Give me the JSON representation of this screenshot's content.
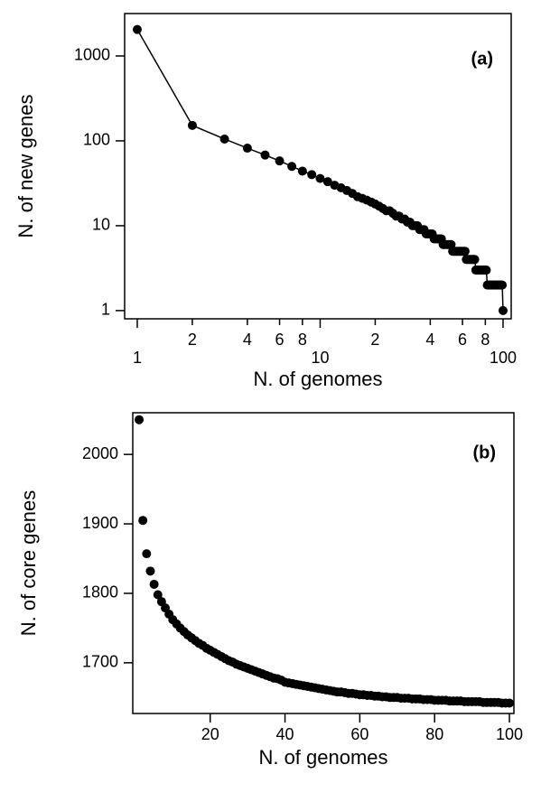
{
  "chart_data": [
    {
      "type": "line",
      "annotation": "(a)",
      "xlabel": "N. of genomes",
      "ylabel": "N. of new genes",
      "xscale": "log",
      "yscale": "log",
      "color": "#000000",
      "markers": true,
      "x": [
        1,
        2,
        3,
        4,
        5,
        6,
        7,
        8,
        9,
        10,
        11,
        12,
        13,
        14,
        15,
        16,
        17,
        18,
        19,
        20,
        21,
        22,
        23,
        24,
        25,
        26,
        27,
        28,
        29,
        30,
        31,
        32,
        33,
        34,
        35,
        36,
        37,
        38,
        39,
        40,
        41,
        42,
        43,
        44,
        45,
        46,
        47,
        48,
        49,
        50,
        51,
        52,
        53,
        54,
        55,
        56,
        57,
        58,
        59,
        60,
        61,
        62,
        63,
        64,
        65,
        66,
        67,
        68,
        69,
        70,
        71,
        72,
        73,
        74,
        75,
        76,
        77,
        78,
        79,
        80,
        81,
        82,
        83,
        84,
        85,
        86,
        87,
        88,
        89,
        90,
        91,
        92,
        93,
        94,
        95,
        96,
        97,
        98,
        99,
        100
      ],
      "values": [
        2050,
        152,
        105,
        82,
        68,
        58,
        50,
        44,
        40,
        36,
        33,
        30,
        28,
        26,
        24,
        22,
        21,
        20,
        19,
        18,
        17,
        16,
        15,
        15,
        14,
        13,
        13,
        12,
        12,
        11,
        11,
        10,
        10,
        10,
        9,
        9,
        9,
        8,
        8,
        8,
        8,
        7,
        7,
        7,
        7,
        7,
        6,
        6,
        6,
        6,
        6,
        6,
        5,
        5,
        5,
        5,
        5,
        5,
        5,
        5,
        5,
        5,
        4,
        4,
        4,
        4,
        4,
        4,
        4,
        4,
        3,
        3,
        3,
        3,
        3,
        3,
        3,
        3,
        3,
        3,
        3,
        2,
        2,
        2,
        2,
        2,
        2,
        2,
        2,
        2,
        2,
        2,
        2,
        2,
        2,
        2,
        2,
        2,
        2,
        1
      ],
      "xlim": [
        0.853,
        110.8
      ],
      "ylim": [
        0.8,
        3160
      ],
      "xticks": [
        1,
        {
          "value": 2,
          "label": "2"
        },
        {
          "value": 4,
          "label": "4"
        },
        {
          "value": 6,
          "label": "6"
        },
        {
          "value": 8,
          "label": "8"
        },
        10,
        {
          "value": 20,
          "label": "2"
        },
        {
          "value": 40,
          "label": "4"
        },
        {
          "value": 60,
          "label": "6"
        },
        {
          "value": 80,
          "label": "8"
        },
        100
      ],
      "yticks": [
        1,
        10,
        100,
        1000
      ]
    },
    {
      "type": "scatter",
      "annotation": "(b)",
      "xlabel": "N. of genomes",
      "ylabel": "N. of core genes",
      "xscale": "linear",
      "yscale": "linear",
      "color": "#000000",
      "x": [
        1,
        2,
        3,
        4,
        5,
        6,
        7,
        8,
        9,
        10,
        11,
        12,
        13,
        14,
        15,
        16,
        17,
        18,
        19,
        20,
        21,
        22,
        23,
        24,
        25,
        26,
        27,
        28,
        29,
        30,
        31,
        32,
        33,
        34,
        35,
        36,
        37,
        38,
        39,
        40,
        41,
        42,
        43,
        44,
        45,
        46,
        47,
        48,
        49,
        50,
        51,
        52,
        53,
        54,
        55,
        56,
        57,
        58,
        59,
        60,
        61,
        62,
        63,
        64,
        65,
        66,
        67,
        68,
        69,
        70,
        71,
        72,
        73,
        74,
        75,
        76,
        77,
        78,
        79,
        80,
        81,
        82,
        83,
        84,
        85,
        86,
        87,
        88,
        89,
        90,
        91,
        92,
        93,
        94,
        95,
        96,
        97,
        98,
        99,
        100
      ],
      "values": [
        2050,
        1905,
        1857,
        1832,
        1813,
        1798,
        1788,
        1779,
        1770,
        1762,
        1756,
        1750,
        1745,
        1740,
        1736,
        1732,
        1728,
        1725,
        1721,
        1718,
        1715,
        1712,
        1709,
        1706,
        1703,
        1701,
        1698,
        1696,
        1694,
        1692,
        1690,
        1688,
        1686,
        1684,
        1682,
        1680,
        1678,
        1677,
        1675,
        1672,
        1671,
        1670,
        1669,
        1668,
        1667,
        1666,
        1665,
        1664,
        1663,
        1662,
        1661,
        1660,
        1659,
        1658,
        1658,
        1657,
        1656,
        1656,
        1655,
        1654,
        1654,
        1653,
        1653,
        1652,
        1652,
        1651,
        1651,
        1650,
        1650,
        1650,
        1649,
        1649,
        1649,
        1648,
        1648,
        1648,
        1647,
        1647,
        1647,
        1646,
        1646,
        1646,
        1646,
        1645,
        1645,
        1645,
        1645,
        1644,
        1644,
        1644,
        1644,
        1644,
        1643,
        1643,
        1643,
        1643,
        1643,
        1642,
        1642,
        1642
      ],
      "xlim": [
        -0.7,
        101.2
      ],
      "ylim": [
        1627,
        2060
      ],
      "xticks": [
        20,
        40,
        60,
        80,
        100
      ],
      "yticks": [
        1700,
        1800,
        1900,
        2000
      ]
    }
  ]
}
